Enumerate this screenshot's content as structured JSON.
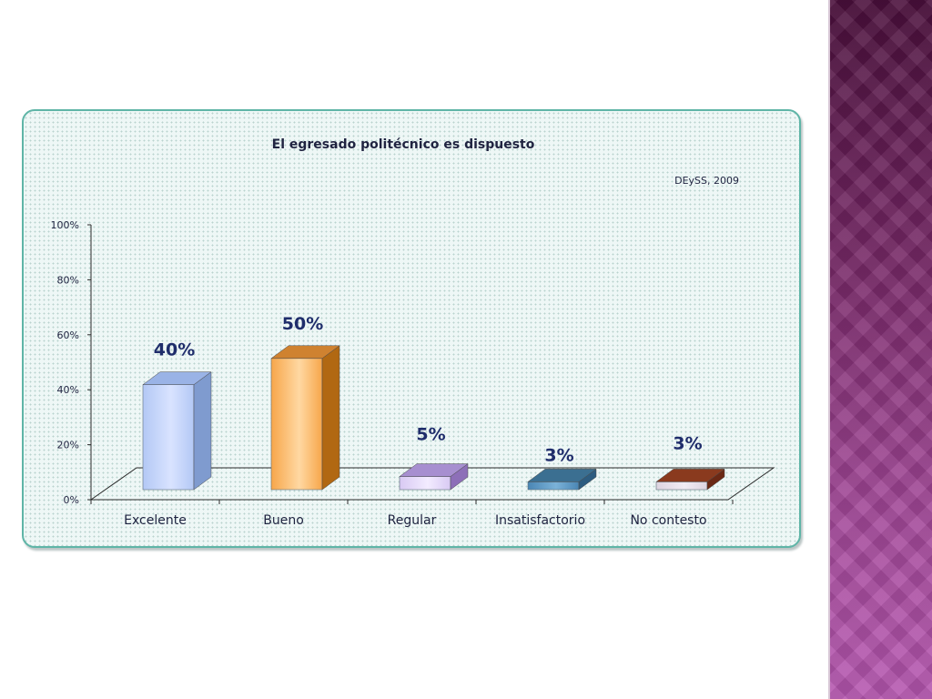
{
  "chart_data": {
    "type": "bar",
    "title": "El egresado politécnico es dispuesto",
    "source": "DEySS, 2009",
    "categories": [
      "Excelente",
      "Bueno",
      "Regular",
      "Insatisfactorio",
      "No contesto"
    ],
    "values": [
      40,
      50,
      5,
      3,
      3
    ],
    "value_labels": [
      "40%",
      "50%",
      "5%",
      "3%",
      "3%"
    ],
    "ylim": [
      0,
      100
    ],
    "yticks": [
      0,
      20,
      40,
      60,
      80,
      100
    ],
    "ytick_labels": [
      "0%",
      "20%",
      "40%",
      "60%",
      "80%",
      "100%"
    ],
    "xlabel": "",
    "ylabel": "",
    "grid": false,
    "legend": "none",
    "colors": [
      {
        "front": "#b3c8f5",
        "light": "#d9e3ff",
        "side": "#7f9bcf",
        "top": "#9ab3e6"
      },
      {
        "front": "#f7a64a",
        "light": "#ffd8a2",
        "side": "#b16812",
        "top": "#cf8230"
      },
      {
        "front": "#d8c9f3",
        "light": "#f3ecff",
        "side": "#8d6fb8",
        "top": "#a78fd0"
      },
      {
        "front": "#4a86b4",
        "light": "#7bb2d8",
        "side": "#2d5c80",
        "top": "#3b6f91"
      },
      {
        "front": "#ddd4e0",
        "light": "#f2ecf4",
        "side": "#6b2814",
        "top": "#8a3a1e"
      }
    ]
  }
}
